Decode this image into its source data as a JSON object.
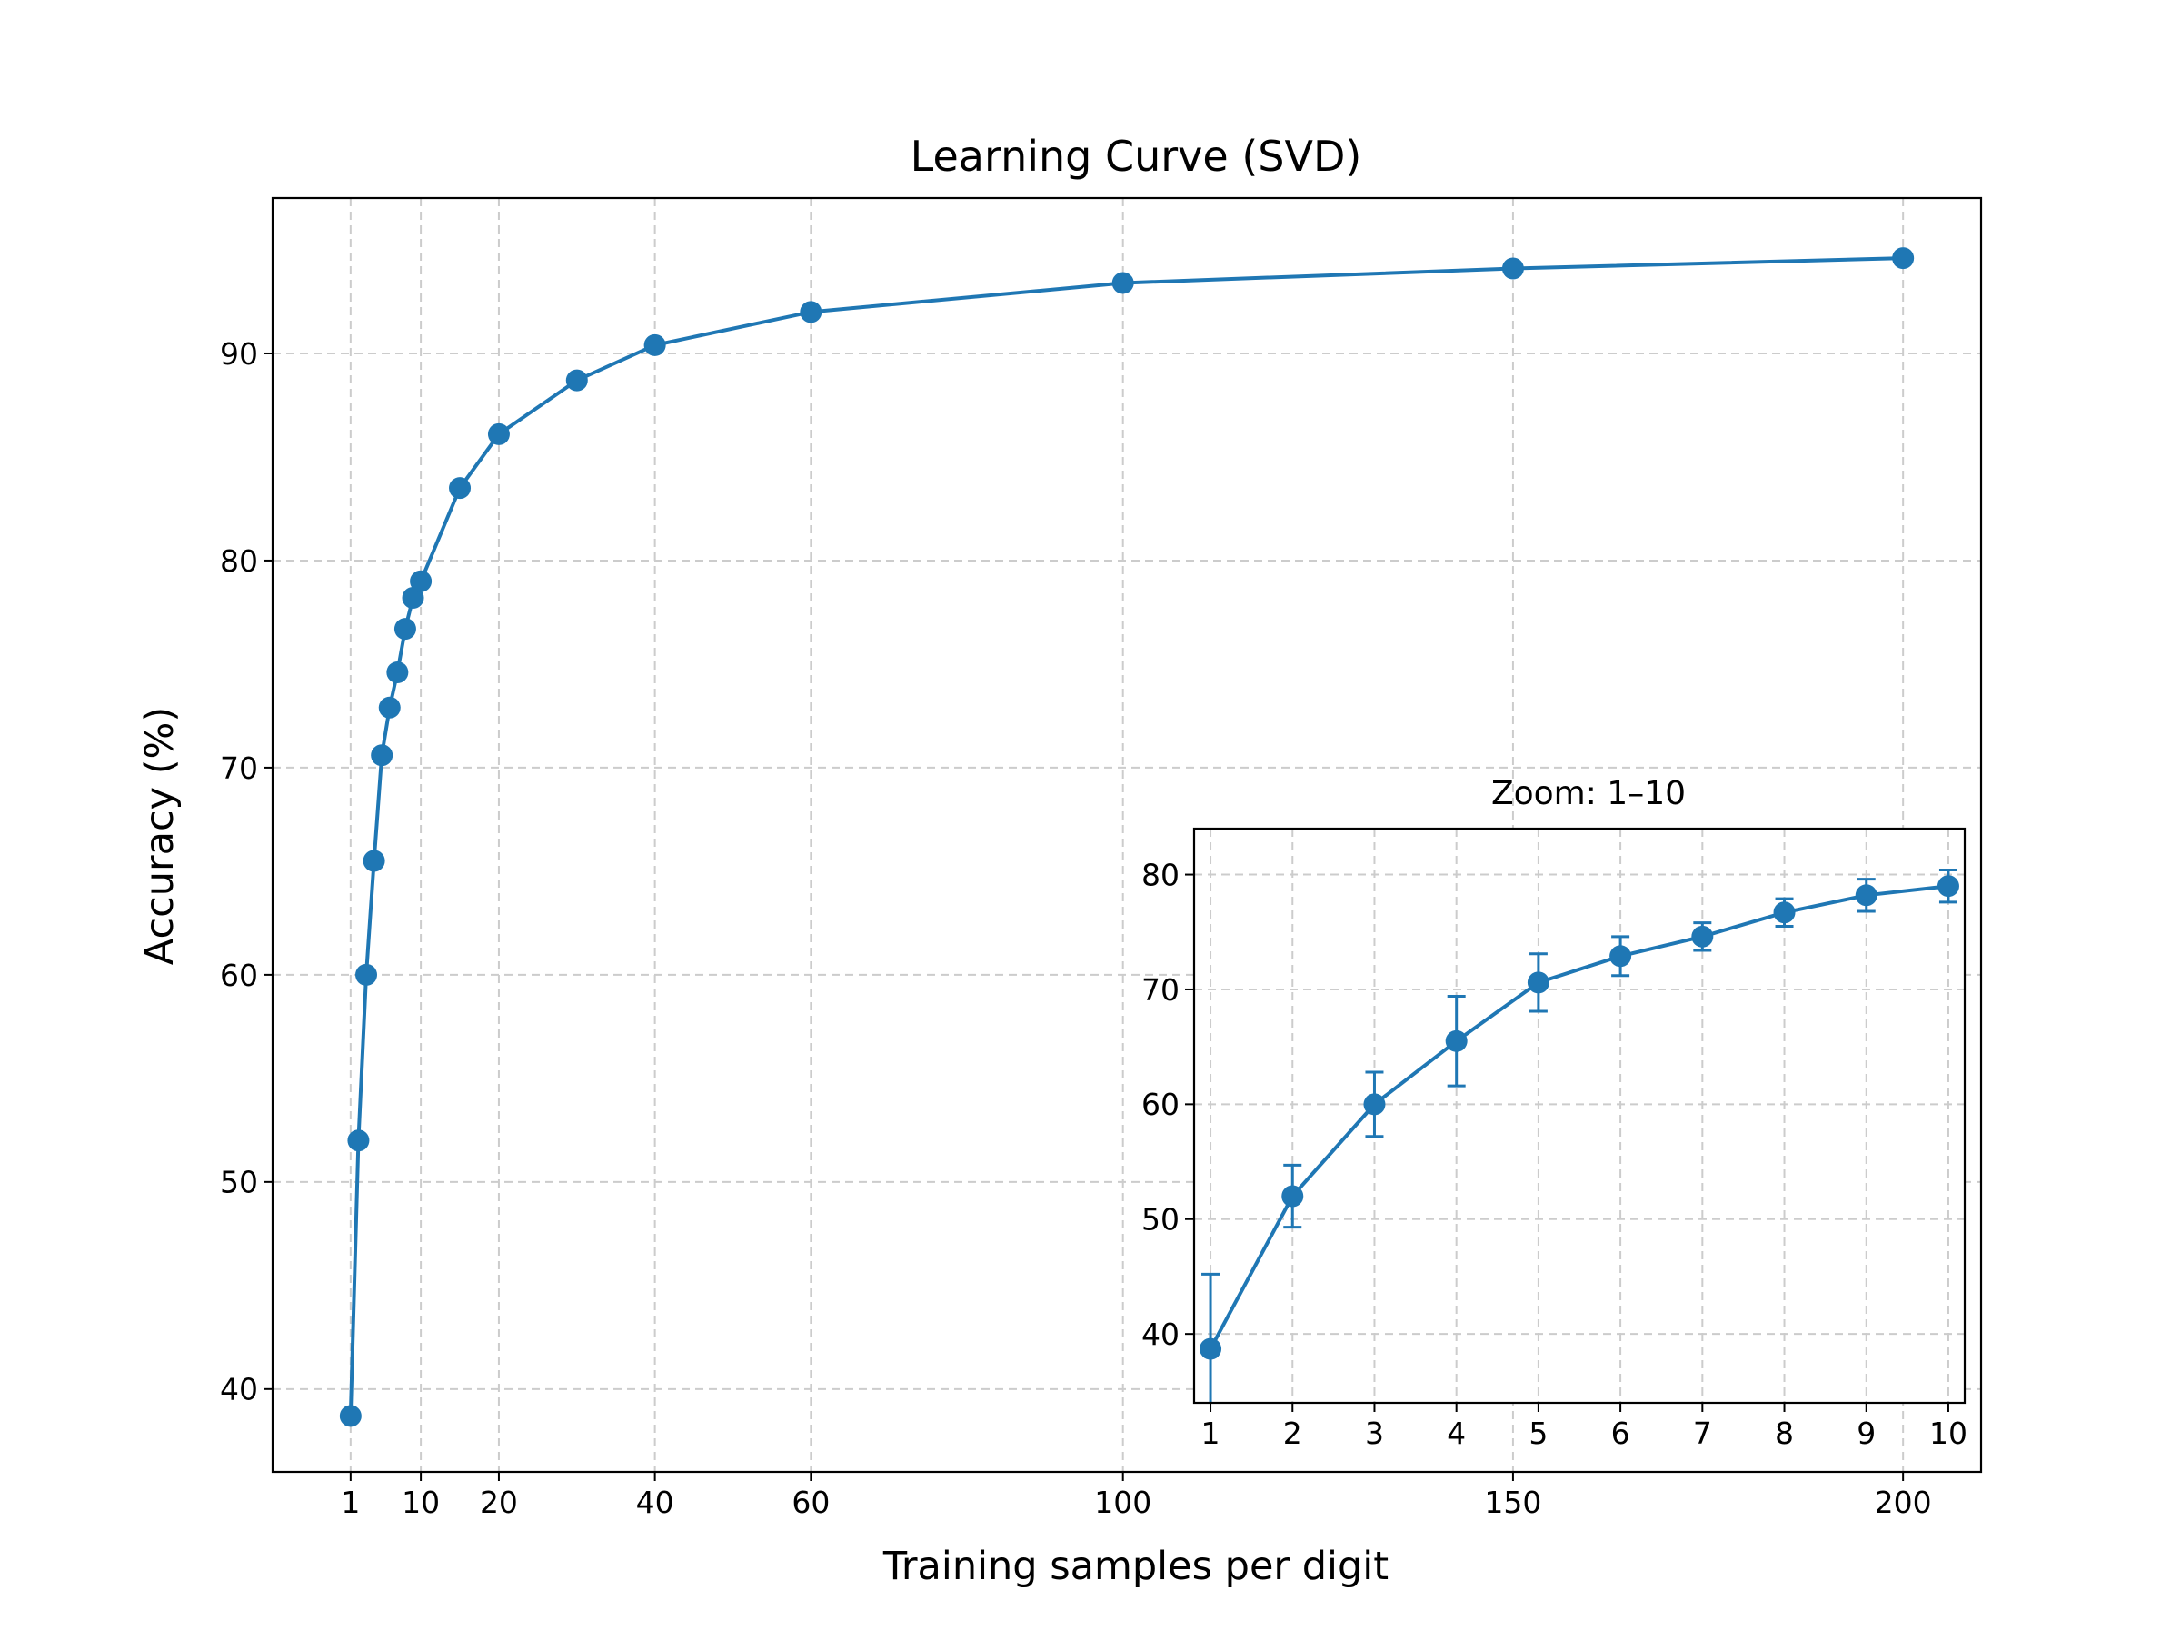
{
  "chart_data": {
    "type": "line",
    "title": "Learning Curve (SVD)",
    "xlabel": "Training samples per digit",
    "ylabel": "Accuracy (%)",
    "color": "#1f77b4",
    "grid": true,
    "xlim": [
      -9,
      210
    ],
    "ylim": [
      36,
      97.5
    ],
    "xticks": [
      1,
      10,
      20,
      40,
      60,
      100,
      150,
      200
    ],
    "yticks": [
      40,
      50,
      60,
      70,
      80,
      90
    ],
    "x": [
      1,
      2,
      3,
      4,
      5,
      6,
      7,
      8,
      9,
      10,
      15,
      20,
      30,
      40,
      60,
      100,
      150,
      200
    ],
    "y": [
      38.7,
      52.0,
      60.0,
      65.5,
      70.6,
      72.9,
      74.6,
      76.7,
      78.2,
      79.0,
      83.5,
      86.1,
      88.7,
      90.4,
      92.0,
      93.4,
      94.1,
      94.6
    ],
    "inset": {
      "title": "Zoom: 1–10",
      "xlim": [
        0.8,
        10.2
      ],
      "ylim": [
        34,
        84
      ],
      "xticks": [
        1,
        2,
        3,
        4,
        5,
        6,
        7,
        8,
        9,
        10
      ],
      "yticks": [
        40,
        50,
        60,
        70,
        80
      ],
      "x": [
        1,
        2,
        3,
        4,
        5,
        6,
        7,
        8,
        9,
        10
      ],
      "y": [
        38.7,
        52.0,
        60.0,
        65.5,
        70.6,
        72.9,
        74.6,
        76.7,
        78.2,
        79.0
      ],
      "yerr": [
        6.5,
        2.7,
        2.8,
        3.9,
        2.5,
        1.7,
        1.2,
        1.2,
        1.4,
        1.4
      ]
    }
  }
}
